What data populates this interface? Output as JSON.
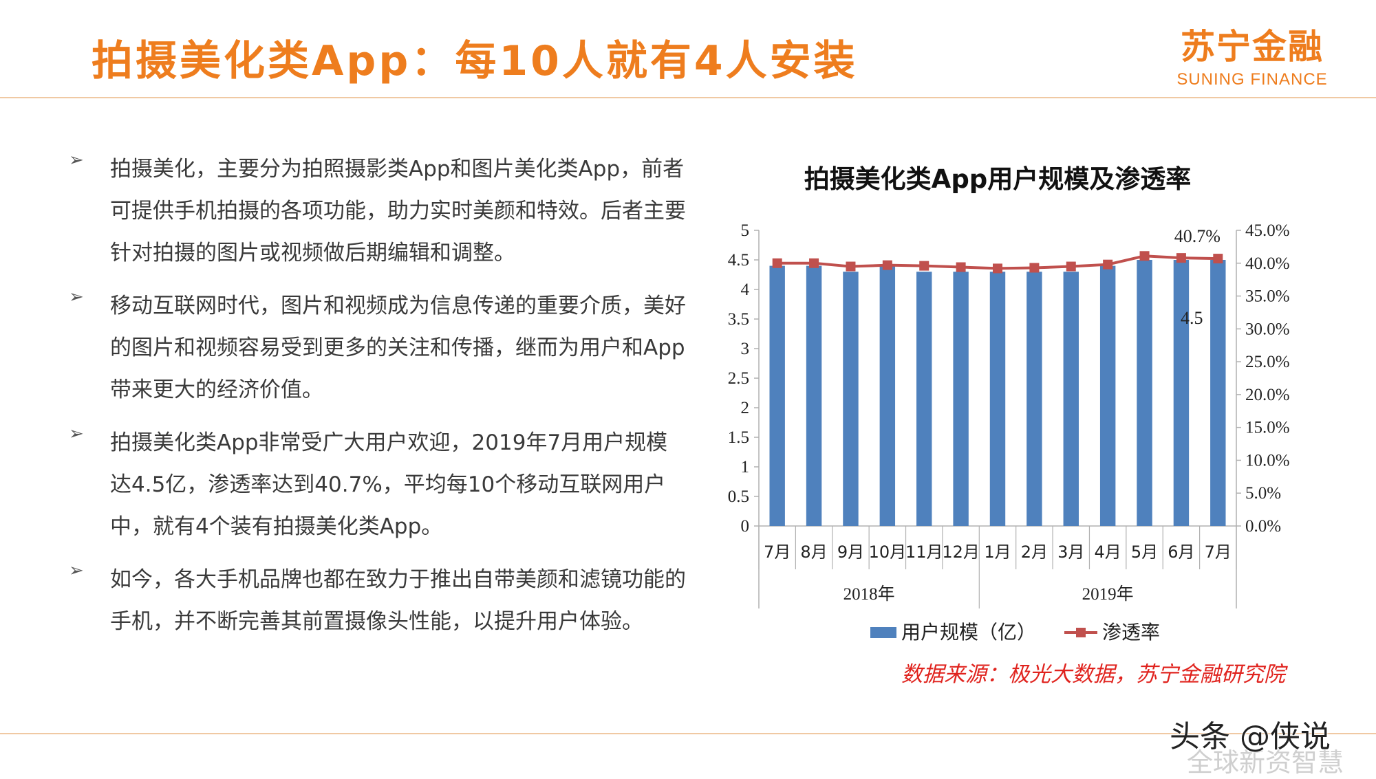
{
  "slide": {
    "title": "拍摄美化类App：每10人就有4人安装",
    "logo_cn": "苏宁金融",
    "logo_en": "SUNING FINANCE"
  },
  "bullets": [
    "拍摄美化，主要分为拍照摄影类App和图片美化类App，前者可提供手机拍摄的各项功能，助力实时美颜和特效。后者主要针对拍摄的图片或视频做后期编辑和调整。",
    "移动互联网时代，图片和视频成为信息传递的重要介质，美好的图片和视频容易受到更多的关注和传播，继而为用户和App带来更大的经济价值。",
    "拍摄美化类App非常受广大用户欢迎，2019年7月用户规模达4.5亿，渗透率达到40.7%，平均每10个移动互联网用户中，就有4个装有拍摄美化类App。",
    "如今，各大手机品牌也都在致力于推出自带美颜和滤镜功能的手机，并不断完善其前置摄像头性能，以提升用户体验。"
  ],
  "bullet_marker": "➢",
  "chart_data": {
    "type": "bar",
    "title": "拍摄美化类App用户规模及渗透率",
    "categories": [
      "7月",
      "8月",
      "9月",
      "10月",
      "11月",
      "12月",
      "1月",
      "2月",
      "3月",
      "4月",
      "5月",
      "6月",
      "7月"
    ],
    "year_groups": [
      {
        "label": "2018年",
        "span": 6
      },
      {
        "label": "2019年",
        "span": 7
      }
    ],
    "series": [
      {
        "name": "用户规模（亿）",
        "type": "bar",
        "axis": "left",
        "color": "#4f81bd",
        "values": [
          4.4,
          4.4,
          4.3,
          4.4,
          4.3,
          4.3,
          4.3,
          4.3,
          4.3,
          4.4,
          4.5,
          4.5,
          4.5
        ]
      },
      {
        "name": "渗透率",
        "type": "line",
        "axis": "right",
        "color": "#c0504d",
        "values": [
          40.0,
          40.0,
          39.5,
          39.7,
          39.6,
          39.4,
          39.2,
          39.3,
          39.5,
          39.8,
          41.1,
          40.8,
          40.7
        ]
      }
    ],
    "y_left": {
      "min": 0,
      "max": 5,
      "ticks": [
        "0",
        "0.5",
        "1",
        "1.5",
        "2",
        "2.5",
        "3",
        "3.5",
        "4",
        "4.5",
        "5"
      ]
    },
    "y_right": {
      "min": 0,
      "max": 45,
      "ticks": [
        "0.0%",
        "5.0%",
        "10.0%",
        "15.0%",
        "20.0%",
        "25.0%",
        "30.0%",
        "35.0%",
        "40.0%",
        "45.0%"
      ]
    },
    "data_labels": {
      "last_bar": "4.5",
      "last_point": "40.7%"
    },
    "legend_position": "bottom",
    "grid": false
  },
  "source": "数据来源：极光大数据，苏宁金融研究院",
  "watermark": "头条 @侠说",
  "watermark_sub": "全球新资智慧"
}
